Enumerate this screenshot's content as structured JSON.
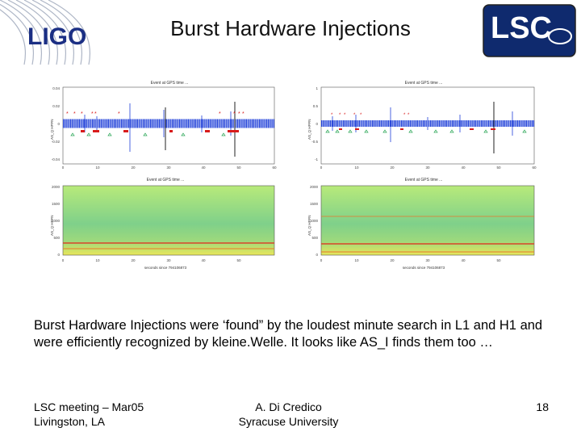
{
  "slide": {
    "title": "Burst Hardware Injections",
    "caption": "Burst Hardware Injections were ‘found” by the loudest minute search in L1 and H1 and were efficiently recognized by kleine.Welle. It looks like AS_I finds them too …",
    "footer_left": [
      "LSC meeting – Mar05",
      "Livingston, LA"
    ],
    "footer_center": [
      "A. Di Credico",
      "Syracuse University"
    ],
    "page_number": "18"
  },
  "logos": {
    "left_text": "LIGO",
    "right_text": "LSC"
  },
  "colors": {
    "trace": "#1f3fd8",
    "event_marker": "#d81b1b",
    "triangle_marker": "#2fa85a",
    "logo_blue": "#1b2f84",
    "lsc_bg": "#0f2a6e"
  },
  "figures": {
    "plots": [
      {
        "id": "L1-time",
        "title": "Event at GPS time ...",
        "ylabel": "AS_Q HPFN",
        "yticks": [
          "0.04",
          "0.02",
          "0",
          "-0.02",
          "-0.04"
        ],
        "xticks": [
          "0",
          "10",
          "20",
          "30",
          "40",
          "50",
          "60"
        ]
      },
      {
        "id": "H1-time",
        "title": "Event at GPS time ...",
        "ylabel": "AS_Q HPFN",
        "yticks": [
          "1",
          "0.5",
          "0",
          "-0.5",
          "-1"
        ],
        "xticks": [
          "0",
          "10",
          "20",
          "30",
          "40",
          "50",
          "60"
        ]
      },
      {
        "id": "L1-spec",
        "title": "Event at GPS time ...",
        "ylabel": "AS_Q HPFN",
        "yticks": [
          "2000",
          "1500",
          "1000",
          "500",
          "0"
        ],
        "xticks": [
          "0",
          "10",
          "20",
          "30",
          "40",
          "50"
        ],
        "xlabel": "seconds since 794106873"
      },
      {
        "id": "H1-spec",
        "title": "Event at GPS time ...",
        "ylabel": "AS_Q HPFN",
        "yticks": [
          "2000",
          "1500",
          "1000",
          "500",
          "0"
        ],
        "xticks": [
          "0",
          "10",
          "20",
          "30",
          "40",
          "50"
        ],
        "xlabel": "seconds since 794106873"
      }
    ]
  }
}
